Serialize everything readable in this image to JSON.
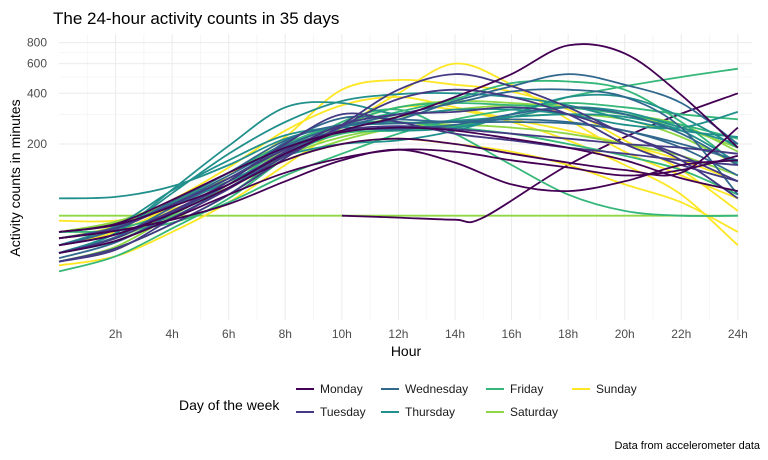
{
  "chart_data": {
    "type": "line",
    "title": "The 24-hour activity counts in 35 days",
    "xlabel": "Hour",
    "ylabel": "Activity counts in minutes",
    "caption": "Data from accelerometer data",
    "y_scale": "log",
    "xlim": [
      0,
      24.5
    ],
    "ylim": [
      18,
      900
    ],
    "x_ticks": [
      {
        "value": 2,
        "label": "2h"
      },
      {
        "value": 4,
        "label": "4h"
      },
      {
        "value": 6,
        "label": "6h"
      },
      {
        "value": 8,
        "label": "8h"
      },
      {
        "value": 10,
        "label": "10h"
      },
      {
        "value": 12,
        "label": "12h"
      },
      {
        "value": 14,
        "label": "14h"
      },
      {
        "value": 16,
        "label": "16h"
      },
      {
        "value": 18,
        "label": "18h"
      },
      {
        "value": 20,
        "label": "20h"
      },
      {
        "value": 22,
        "label": "22h"
      },
      {
        "value": 24,
        "label": "24h"
      }
    ],
    "y_ticks": [
      {
        "value": 200,
        "label": "200"
      },
      {
        "value": 400,
        "label": "400"
      },
      {
        "value": 600,
        "label": "600"
      },
      {
        "value": 800,
        "label": "800"
      }
    ],
    "grid": true,
    "legend": {
      "title": "Day of the week",
      "position": "bottom",
      "entries": [
        {
          "name": "Monday",
          "color": "#440154"
        },
        {
          "name": "Tuesday",
          "color": "#443A83"
        },
        {
          "name": "Wednesday",
          "color": "#31688E"
        },
        {
          "name": "Thursday",
          "color": "#21908C"
        },
        {
          "name": "Friday",
          "color": "#35B779"
        },
        {
          "name": "Saturday",
          "color": "#8FD744"
        },
        {
          "name": "Sunday",
          "color": "#FDE725"
        }
      ]
    },
    "series_x": [
      0,
      2,
      4,
      6,
      8,
      10,
      12,
      14,
      16,
      18,
      20,
      22,
      24
    ],
    "series": [
      {
        "day": "Monday",
        "values": [
          60,
          66,
          85,
          115,
          175,
          240,
          290,
          380,
          520,
          770,
          690,
          390,
          190
        ]
      },
      {
        "day": "Monday",
        "values": [
          55,
          61,
          71,
          88,
          120,
          160,
          185,
          155,
          115,
          105,
          120,
          150,
          160
        ]
      },
      {
        "day": "Monday",
        "values": [
          45,
          53,
          72,
          100,
          135,
          165,
          185,
          180,
          160,
          145,
          130,
          140,
          170
        ]
      },
      {
        "day": "Monday",
        "values": [
          50,
          58,
          77,
          110,
          160,
          200,
          215,
          200,
          175,
          155,
          140,
          135,
          250
        ]
      },
      {
        "day": "Monday",
        "values": [
          60,
          67,
          93,
          135,
          190,
          235,
          250,
          240,
          215,
          190,
          160,
          125,
          105
        ]
      },
      {
        "day": "Tuesday",
        "values": [
          45,
          55,
          79,
          115,
          180,
          260,
          300,
          310,
          330,
          300,
          230,
          160,
          95
        ]
      },
      {
        "day": "Tuesday",
        "values": [
          55,
          63,
          87,
          125,
          185,
          240,
          255,
          245,
          230,
          215,
          200,
          190,
          175
        ]
      },
      {
        "day": "Tuesday",
        "values": [
          40,
          47,
          72,
          108,
          170,
          255,
          370,
          420,
          380,
          300,
          200,
          150,
          120
        ]
      },
      {
        "day": "Tuesday",
        "values": [
          50,
          58,
          80,
          120,
          200,
          300,
          270,
          230,
          210,
          190,
          175,
          160,
          150
        ]
      },
      {
        "day": "Tuesday",
        "values": [
          40,
          48,
          67,
          100,
          165,
          260,
          420,
          520,
          440,
          330,
          230,
          170,
          120
        ]
      },
      {
        "day": "Wednesday",
        "values": [
          42,
          52,
          77,
          120,
          205,
          285,
          280,
          270,
          270,
          265,
          240,
          190,
          130
        ]
      },
      {
        "day": "Wednesday",
        "values": [
          45,
          56,
          84,
          125,
          190,
          240,
          245,
          260,
          300,
          330,
          300,
          230,
          150
        ]
      },
      {
        "day": "Wednesday",
        "values": [
          50,
          62,
          91,
          135,
          210,
          260,
          265,
          270,
          280,
          270,
          240,
          200,
          160
        ]
      },
      {
        "day": "Wednesday",
        "values": [
          45,
          53,
          73,
          110,
          175,
          250,
          300,
          350,
          410,
          420,
          380,
          250,
          100
        ]
      },
      {
        "day": "Wednesday",
        "values": [
          55,
          64,
          88,
          130,
          195,
          255,
          280,
          360,
          440,
          520,
          450,
          350,
          200
        ]
      },
      {
        "day": "Thursday",
        "values": [
          95,
          97,
          112,
          150,
          215,
          255,
          265,
          275,
          290,
          300,
          290,
          240,
          155
        ]
      },
      {
        "day": "Thursday",
        "values": [
          45,
          59,
          102,
          175,
          270,
          360,
          395,
          400,
          380,
          340,
          280,
          240,
          220
        ]
      },
      {
        "day": "Thursday",
        "values": [
          45,
          59,
          107,
          195,
          330,
          350,
          300,
          320,
          320,
          300,
          260,
          250,
          310
        ]
      },
      {
        "day": "Thursday",
        "values": [
          50,
          65,
          106,
          160,
          225,
          250,
          240,
          250,
          290,
          330,
          310,
          250,
          200
        ]
      },
      {
        "day": "Thursday",
        "values": [
          60,
          66,
          86,
          120,
          170,
          200,
          210,
          240,
          300,
          380,
          380,
          290,
          190
        ]
      },
      {
        "day": "Friday",
        "values": [
          55,
          62,
          79,
          115,
          180,
          260,
          330,
          350,
          340,
          330,
          300,
          260,
          215
        ]
      },
      {
        "day": "Friday",
        "values": [
          40,
          48,
          67,
          100,
          170,
          230,
          240,
          255,
          300,
          380,
          440,
          500,
          560
        ]
      },
      {
        "day": "Friday",
        "values": [
          60,
          61,
          68,
          90,
          130,
          175,
          230,
          280,
          320,
          350,
          330,
          300,
          280
        ]
      },
      {
        "day": "Friday",
        "values": [
          55,
          64,
          89,
          135,
          200,
          260,
          270,
          250,
          230,
          200,
          170,
          140,
          100
        ]
      },
      {
        "day": "Friday",
        "values": [
          45,
          53,
          76,
          115,
          190,
          260,
          310,
          370,
          460,
          470,
          420,
          270,
          150
        ]
      },
      {
        "day": "Friday",
        "values": [
          35,
          43,
          63,
          95,
          165,
          270,
          320,
          230,
          150,
          100,
          80,
          75,
          75
        ]
      },
      {
        "day": "Saturday",
        "values": [
          60,
          68,
          89,
          120,
          160,
          210,
          250,
          270,
          290,
          300,
          280,
          220,
          150
        ]
      },
      {
        "day": "Saturday",
        "values": [
          45,
          55,
          77,
          115,
          180,
          260,
          330,
          360,
          350,
          330,
          300,
          260,
          180
        ]
      },
      {
        "day": "Saturday",
        "values": [
          60,
          69,
          91,
          125,
          180,
          240,
          290,
          320,
          340,
          330,
          300,
          250,
          190
        ]
      },
      {
        "day": "Saturday",
        "values": [
          40,
          49,
          75,
          115,
          170,
          220,
          250,
          260,
          250,
          230,
          200,
          170,
          130
        ]
      },
      {
        "day": "Sunday",
        "values": [
          38,
          43,
          60,
          90,
          150,
          250,
          400,
          600,
          450,
          280,
          180,
          130,
          95
        ]
      },
      {
        "day": "Sunday",
        "values": [
          55,
          65,
          93,
          145,
          240,
          340,
          380,
          330,
          280,
          240,
          200,
          160,
          120
        ]
      },
      {
        "day": "Sunday",
        "values": [
          50,
          60,
          85,
          130,
          220,
          420,
          480,
          450,
          410,
          320,
          210,
          140,
          80
        ]
      },
      {
        "day": "Sunday",
        "values": [
          70,
          70,
          82,
          110,
          160,
          200,
          215,
          200,
          180,
          150,
          115,
          90,
          60
        ]
      },
      {
        "day": "Sunday",
        "values": [
          55,
          62,
          80,
          115,
          170,
          255,
          330,
          320,
          270,
          210,
          150,
          100,
          50
        ]
      }
    ],
    "flat_series": [
      {
        "day": "Saturday",
        "x": [
          0,
          24
        ],
        "values": [
          75,
          75
        ]
      },
      {
        "day": "Monday",
        "x": [
          10,
          12,
          14,
          15,
          18,
          21,
          24
        ],
        "values": [
          75,
          73,
          71,
          73,
          150,
          260,
          400
        ]
      }
    ]
  }
}
